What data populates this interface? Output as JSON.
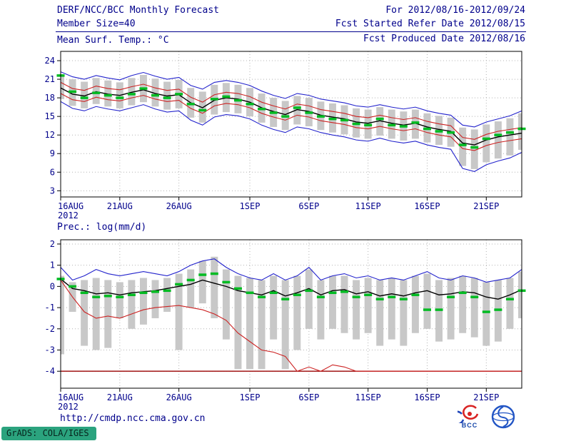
{
  "header": {
    "title": "DERF/NCC/BCC Monthly Forecast",
    "member_size": "Member Size=40",
    "for_range": "For 2012/08/16-2012/09/24",
    "fcst_started": "Fcst Started Refer Date 2012/08/15",
    "fcst_produced": "Fcst Produced Date 2012/08/16"
  },
  "footer": {
    "url": "http://cmdp.ncc.cma.gov.cn",
    "grads_signature": "GrADS: COLA/IGES",
    "bcc_logo_label": "BCC"
  },
  "colors": {
    "text": "#00008b",
    "frame": "#000000",
    "grid": "#b4b4b4",
    "bar": "#c8c8c8",
    "blue": "#2222cc",
    "red": "#cc2222",
    "black": "#000000",
    "green": "#00bb22",
    "floor": "#990000",
    "grads_bg": "#2ba37e"
  },
  "chart_data": [
    {
      "type": "line",
      "title": "Mean Surf. Temp.: °C",
      "year": "2012",
      "n_points": 40,
      "ylim": [
        2,
        25.5
      ],
      "yticks": [
        3,
        6,
        9,
        12,
        15,
        18,
        21,
        24
      ],
      "x_tick_labels": [
        "16AUG",
        "21AUG",
        "26AUG",
        "1SEP",
        "6SEP",
        "11SEP",
        "16SEP",
        "21SEP"
      ],
      "x_tick_positions": [
        0,
        5,
        10,
        16,
        21,
        26,
        31,
        36
      ],
      "bars": {
        "top": [
          21.8,
          21.0,
          20.6,
          21.2,
          20.8,
          20.5,
          21.2,
          21.7,
          21.1,
          20.6,
          20.9,
          19.6,
          19.0,
          20.1,
          20.4,
          20.1,
          19.6,
          18.7,
          18.0,
          17.5,
          18.3,
          18.0,
          17.4,
          17.1,
          16.8,
          16.3,
          16.1,
          16.5,
          16.1,
          15.8,
          16.1,
          15.5,
          15.1,
          14.8,
          13.2,
          12.9,
          13.7,
          14.2,
          14.7,
          15.5
        ],
        "bottom": [
          17.8,
          16.7,
          16.3,
          17.0,
          16.6,
          16.3,
          16.8,
          17.3,
          16.6,
          16.1,
          16.3,
          14.8,
          14.0,
          15.3,
          15.7,
          15.5,
          15.0,
          14.0,
          13.3,
          12.8,
          13.7,
          13.4,
          12.8,
          12.4,
          12.1,
          11.6,
          11.4,
          11.9,
          11.4,
          11.1,
          11.4,
          10.8,
          10.4,
          10.1,
          7.0,
          6.5,
          7.6,
          8.2,
          8.7,
          9.6
        ]
      },
      "series": [
        {
          "name": "ensemble-max",
          "color_key": "blue",
          "style": "line",
          "values": [
            22.2,
            21.4,
            21.0,
            21.6,
            21.2,
            20.9,
            21.6,
            22.1,
            21.5,
            21.0,
            21.3,
            20.0,
            19.4,
            20.5,
            20.8,
            20.5,
            20.0,
            19.1,
            18.4,
            17.9,
            18.7,
            18.4,
            17.8,
            17.5,
            17.2,
            16.7,
            16.5,
            16.9,
            16.5,
            16.2,
            16.5,
            15.9,
            15.5,
            15.2,
            13.6,
            13.3,
            14.1,
            14.6,
            15.1,
            15.9
          ]
        },
        {
          "name": "ensemble-min",
          "color_key": "blue",
          "style": "line",
          "values": [
            17.4,
            16.3,
            15.9,
            16.6,
            16.2,
            15.9,
            16.4,
            16.9,
            16.2,
            15.7,
            15.9,
            14.4,
            13.6,
            14.9,
            15.3,
            15.1,
            14.6,
            13.6,
            12.9,
            12.4,
            13.3,
            13.0,
            12.4,
            12.0,
            11.7,
            11.2,
            11.0,
            11.5,
            11.0,
            10.7,
            11.0,
            10.4,
            10.0,
            9.7,
            6.6,
            6.1,
            7.2,
            7.8,
            8.3,
            9.2
          ]
        },
        {
          "name": "mean-plus-spread",
          "color_key": "red",
          "style": "line",
          "values": [
            20.5,
            19.5,
            19.2,
            19.9,
            19.5,
            19.3,
            19.8,
            20.2,
            19.6,
            19.2,
            19.4,
            18.1,
            17.3,
            18.5,
            18.9,
            18.7,
            18.2,
            17.3,
            16.7,
            16.2,
            17.0,
            16.7,
            16.1,
            15.8,
            15.5,
            15.0,
            14.8,
            15.2,
            14.8,
            14.5,
            14.8,
            14.2,
            13.8,
            13.5,
            11.6,
            11.3,
            12.1,
            12.6,
            12.9,
            13.2
          ]
        },
        {
          "name": "mean-minus-spread",
          "color_key": "red",
          "style": "line",
          "values": [
            18.7,
            17.7,
            17.4,
            18.1,
            17.7,
            17.5,
            18.0,
            18.4,
            17.8,
            17.4,
            17.6,
            16.3,
            15.5,
            16.7,
            17.1,
            16.9,
            16.4,
            15.5,
            14.9,
            14.4,
            15.2,
            14.9,
            14.3,
            14.0,
            13.7,
            13.2,
            13.0,
            13.4,
            13.0,
            12.7,
            13.0,
            12.4,
            12.0,
            11.7,
            9.8,
            9.5,
            10.3,
            10.8,
            11.1,
            11.4
          ]
        },
        {
          "name": "ensemble-mean",
          "color_key": "black",
          "style": "line",
          "values": [
            19.6,
            18.6,
            18.3,
            19.0,
            18.6,
            18.4,
            18.9,
            19.3,
            18.7,
            18.3,
            18.5,
            17.2,
            16.4,
            17.6,
            18.0,
            17.8,
            17.3,
            16.4,
            15.8,
            15.3,
            16.1,
            15.8,
            15.2,
            14.9,
            14.6,
            14.1,
            13.9,
            14.3,
            13.9,
            13.6,
            13.9,
            13.3,
            12.9,
            12.6,
            10.7,
            10.4,
            11.2,
            11.7,
            12.0,
            12.3
          ]
        },
        {
          "name": "observation",
          "color_key": "green",
          "style": "dash",
          "values": [
            21.6,
            19.0,
            18.0,
            18.8,
            18.4,
            18.0,
            18.6,
            19.5,
            18.4,
            18.0,
            18.6,
            17.0,
            16.0,
            17.8,
            18.2,
            17.6,
            17.0,
            16.2,
            15.6,
            15.0,
            16.4,
            15.6,
            15.0,
            14.6,
            14.4,
            13.8,
            13.6,
            14.6,
            13.6,
            13.4,
            14.0,
            13.0,
            12.6,
            12.4,
            10.4,
            10.0,
            11.4,
            12.0,
            12.4,
            13.0
          ]
        }
      ]
    },
    {
      "type": "line",
      "title": "Prec.: log(mm/d)",
      "year": "2012",
      "n_points": 40,
      "ylim": [
        -4.8,
        2.2
      ],
      "yticks": [
        -4,
        -3,
        -2,
        -1,
        0,
        1,
        2
      ],
      "x_tick_labels": [
        "16AUG",
        "21AUG",
        "26AUG",
        "1SEP",
        "6SEP",
        "11SEP",
        "16SEP",
        "21SEP"
      ],
      "x_tick_positions": [
        0,
        5,
        10,
        16,
        21,
        26,
        31,
        36
      ],
      "hline": {
        "y": -4,
        "color_key": "floor"
      },
      "bars": {
        "top": [
          0.5,
          0.2,
          0.3,
          0.4,
          0.3,
          0.2,
          0.3,
          0.4,
          0.3,
          0.4,
          0.6,
          0.8,
          1.2,
          1.4,
          0.8,
          0.5,
          0.4,
          0.3,
          0.5,
          0.3,
          0.5,
          0.8,
          0.3,
          0.5,
          0.5,
          0.3,
          0.4,
          0.3,
          0.4,
          0.3,
          0.5,
          0.6,
          0.3,
          0.4,
          0.5,
          0.4,
          0.2,
          0.3,
          0.4,
          0.7
        ],
        "bottom": [
          -3.2,
          -1.2,
          -2.8,
          -3.0,
          -2.9,
          -1.5,
          -2.0,
          -1.8,
          -1.5,
          -1.2,
          -3.0,
          -1.0,
          -0.8,
          -1.5,
          -2.5,
          -3.9,
          -3.9,
          -3.9,
          -2.5,
          -3.9,
          -3.0,
          -2.0,
          -2.5,
          -2.0,
          -2.2,
          -2.5,
          -2.2,
          -2.8,
          -2.5,
          -2.8,
          -2.2,
          -2.0,
          -2.6,
          -2.5,
          -2.2,
          -2.4,
          -2.8,
          -2.6,
          -2.0,
          -1.5
        ]
      },
      "series": [
        {
          "name": "upper-line",
          "color_key": "blue",
          "style": "line",
          "values": [
            0.9,
            0.3,
            0.5,
            0.8,
            0.6,
            0.5,
            0.6,
            0.7,
            0.6,
            0.5,
            0.7,
            1.0,
            1.2,
            1.3,
            0.9,
            0.6,
            0.4,
            0.3,
            0.6,
            0.3,
            0.5,
            0.9,
            0.3,
            0.5,
            0.6,
            0.4,
            0.5,
            0.3,
            0.4,
            0.3,
            0.5,
            0.7,
            0.4,
            0.3,
            0.5,
            0.4,
            0.2,
            0.3,
            0.4,
            0.8
          ]
        },
        {
          "name": "lower-line",
          "color_key": "red",
          "style": "line",
          "values": [
            0.3,
            -0.5,
            -1.2,
            -1.5,
            -1.4,
            -1.5,
            -1.3,
            -1.1,
            -1.0,
            -0.95,
            -0.9,
            -1.0,
            -1.1,
            -1.3,
            -1.6,
            -2.2,
            -2.6,
            -3.0,
            -3.1,
            -3.3,
            -4.0,
            -3.8,
            -4.0,
            -3.7,
            -3.8,
            -4.0,
            -4.0,
            -4.0,
            -4.0,
            -4.0,
            -4.0,
            -4.0,
            -4.0,
            -4.0,
            -4.0,
            -4.0,
            -4.0,
            -4.0,
            -4.0,
            -4.0
          ]
        },
        {
          "name": "mean-line",
          "color_key": "black",
          "style": "line",
          "values": [
            0.35,
            -0.1,
            -0.2,
            -0.35,
            -0.3,
            -0.4,
            -0.3,
            -0.25,
            -0.2,
            -0.1,
            0.0,
            0.1,
            0.3,
            0.15,
            0.0,
            -0.2,
            -0.3,
            -0.4,
            -0.2,
            -0.45,
            -0.3,
            -0.1,
            -0.4,
            -0.2,
            -0.15,
            -0.35,
            -0.25,
            -0.45,
            -0.35,
            -0.45,
            -0.3,
            -0.2,
            -0.4,
            -0.35,
            -0.25,
            -0.3,
            -0.5,
            -0.6,
            -0.4,
            -0.15
          ]
        },
        {
          "name": "observation",
          "color_key": "green",
          "style": "dash",
          "values": [
            0.35,
            0.0,
            -0.3,
            -0.5,
            -0.45,
            -0.5,
            -0.4,
            -0.3,
            -0.25,
            -0.2,
            0.1,
            0.3,
            0.55,
            0.6,
            0.2,
            -0.1,
            -0.3,
            -0.5,
            -0.3,
            -0.6,
            -0.4,
            -0.2,
            -0.5,
            -0.3,
            -0.25,
            -0.5,
            -0.4,
            -0.6,
            -0.5,
            -0.6,
            -0.4,
            -1.1,
            -1.1,
            -0.5,
            -0.3,
            -0.5,
            -1.2,
            -1.1,
            -0.6,
            -0.2
          ]
        }
      ]
    }
  ]
}
